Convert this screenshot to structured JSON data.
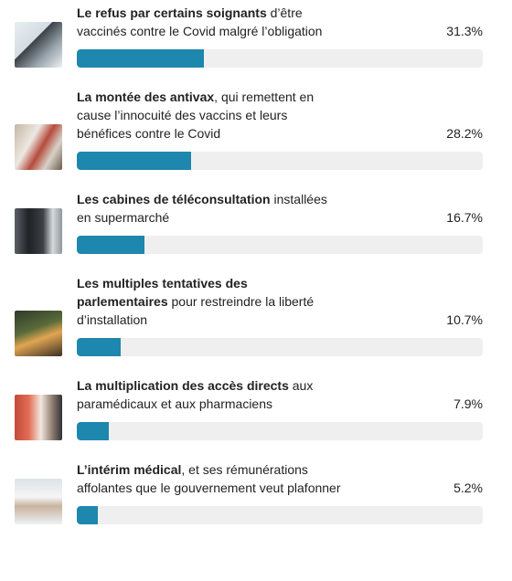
{
  "poll": {
    "xlim": [
      0,
      100
    ],
    "items": [
      {
        "bold": "Le refus par certains soignants",
        "text": " d’être vaccinés contre le Covid malgré l’obligation",
        "percent": 31.3,
        "percent_label": "31.3%"
      },
      {
        "bold": "La montée des antivax",
        "text": ", qui remettent en cause l’innocuité des vaccins et leurs bénéfices contre le Covid",
        "percent": 28.2,
        "percent_label": "28.2%"
      },
      {
        "bold": "Les cabines de téléconsultation",
        "text": " installées en supermarché",
        "percent": 16.7,
        "percent_label": "16.7%"
      },
      {
        "bold": "Les multiples tentatives des parlementaires",
        "text": " pour restreindre la liberté d’installation",
        "percent": 10.7,
        "percent_label": "10.7%"
      },
      {
        "bold": "La multiplication des accès directs",
        "text": " aux paramédicaux et aux pharmaciens",
        "percent": 7.9,
        "percent_label": "7.9%"
      },
      {
        "bold": "L’intérim médical",
        "text": ", et ses rémunérations affolantes que le gouvernement veut plafonner",
        "percent": 5.2,
        "percent_label": "5.2%"
      }
    ]
  }
}
